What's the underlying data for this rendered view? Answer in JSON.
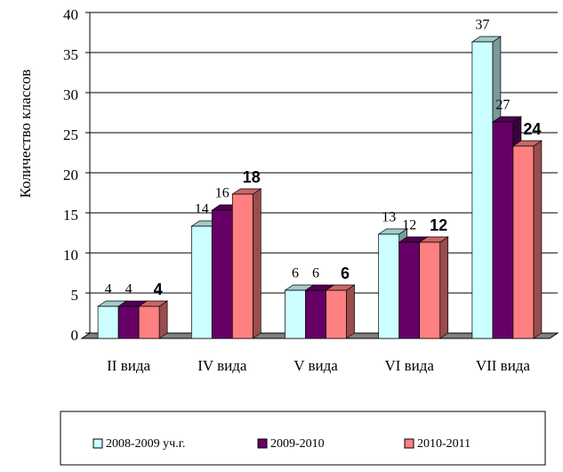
{
  "chart_data": {
    "type": "bar3d",
    "y_label": "Количество классов",
    "categories": [
      "II вида",
      "IV вида",
      "V вида",
      "VI вида",
      "VII вида"
    ],
    "series": [
      {
        "name": "2008-2009 уч.г.",
        "color": "#ccffff",
        "values": [
          4,
          14,
          6,
          13,
          37
        ]
      },
      {
        "name": "2009-2010",
        "color": "#660066",
        "values": [
          4,
          16,
          6,
          12,
          27
        ]
      },
      {
        "name": "2010-2011",
        "color": "#ff8080",
        "values": [
          4,
          18,
          6,
          12,
          24
        ]
      }
    ],
    "ylim": [
      0,
      40
    ],
    "yticks": [
      0,
      5,
      10,
      15,
      20,
      25,
      30,
      35,
      40
    ],
    "grid": true
  }
}
